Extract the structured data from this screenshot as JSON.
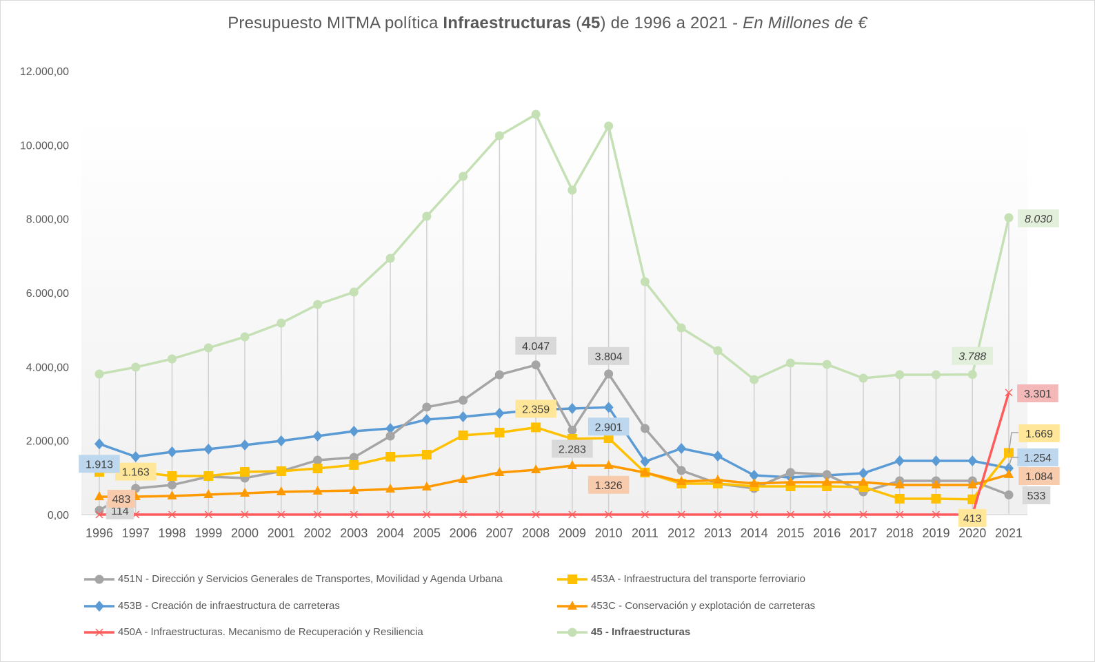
{
  "chart_data": {
    "type": "line",
    "title": {
      "part1": "Presupuesto  MITMA política ",
      "bold": "Infraestructuras",
      "part2": " (",
      "bold2": "45",
      "part3": ") de 1996 a 2021 - ",
      "italic": "En Millones de €"
    },
    "xlabel": "",
    "ylabel": "",
    "ylim": [
      0,
      12000
    ],
    "yticks": [
      0,
      2000,
      4000,
      6000,
      8000,
      10000,
      12000
    ],
    "ytick_labels": [
      "0,00",
      "2.000,00",
      "4.000,00",
      "6.000,00",
      "8.000,00",
      "10.000,00",
      "12.000,00"
    ],
    "grid": "vertical drop lines",
    "legend_position": "bottom",
    "categories": [
      "1996",
      "1997",
      "1998",
      "1999",
      "2000",
      "2001",
      "2002",
      "2003",
      "2004",
      "2005",
      "2006",
      "2007",
      "2008",
      "2009",
      "2010",
      "2011",
      "2012",
      "2013",
      "2014",
      "2015",
      "2016",
      "2017",
      "2018",
      "2019",
      "2020",
      "2021"
    ],
    "series": [
      {
        "name": "451N - Dirección y Servicios Generales de Transportes, Movilidad y Agenda Urbana",
        "color": "#a5a5a5",
        "marker": "circle",
        "values": [
          114,
          708,
          801,
          1025,
          988,
          1174,
          1472,
          1546,
          2124,
          2907,
          3093,
          3783,
          4047,
          2283,
          3804,
          2329,
          1193,
          838,
          708,
          1137,
          1081,
          615,
          913,
          913,
          913,
          533
        ],
        "labels": [
          {
            "index": 0,
            "text": "114",
            "bg": "#d9d9d9"
          },
          {
            "index": 12,
            "text": "4.047",
            "bg": "#d9d9d9"
          },
          {
            "index": 13,
            "text": "2.283",
            "bg": "#d9d9d9"
          },
          {
            "index": 14,
            "text": "3.804",
            "bg": "#d9d9d9"
          },
          {
            "index": 25,
            "text": "533",
            "bg": "#d9d9d9"
          }
        ]
      },
      {
        "name": "453A - Infraestructura del transporte ferroviario",
        "color": "#ffc000",
        "marker": "square",
        "values": [
          1155,
          1163,
          1043,
          1043,
          1155,
          1174,
          1248,
          1342,
          1565,
          1621,
          2143,
          2217,
          2359,
          2050,
          2068,
          1137,
          838,
          838,
          764,
          764,
          764,
          745,
          429,
          429,
          413,
          1669
        ],
        "labels": [
          {
            "index": 1,
            "text": "1.163",
            "bg": "#ffe699"
          },
          {
            "index": 12,
            "text": "2.359",
            "bg": "#ffe699"
          },
          {
            "index": 24,
            "text": "413",
            "bg": "#ffe699"
          },
          {
            "index": 25,
            "text": "1.669",
            "bg": "#ffe699"
          }
        ]
      },
      {
        "name": "453B - Creación de infraestructura de carreteras",
        "color": "#5b9bd5",
        "marker": "diamond",
        "values": [
          1913,
          1565,
          1696,
          1770,
          1882,
          1994,
          2124,
          2255,
          2329,
          2571,
          2646,
          2739,
          2832,
          2869,
          2901,
          1435,
          1789,
          1584,
          1062,
          1006,
          1062,
          1118,
          1453,
          1453,
          1453,
          1254
        ],
        "labels": [
          {
            "index": 0,
            "text": "1.913",
            "bg": "#bdd7ee"
          },
          {
            "index": 14,
            "text": "2.901",
            "bg": "#bdd7ee"
          },
          {
            "index": 25,
            "text": "1.254",
            "bg": "#bdd7ee"
          }
        ]
      },
      {
        "name": "453C - Conservación y explotación de carreteras",
        "color": "#ff9900",
        "marker": "triangle",
        "values": [
          483,
          484,
          503,
          540,
          578,
          615,
          634,
          652,
          689,
          745,
          950,
          1137,
          1211,
          1323,
          1326,
          1137,
          894,
          932,
          838,
          876,
          876,
          876,
          801,
          801,
          801,
          1084
        ],
        "labels": [
          {
            "index": 0,
            "text": "483",
            "bg": "#f8cbad"
          },
          {
            "index": 14,
            "text": "1.326",
            "bg": "#f8cbad"
          },
          {
            "index": 25,
            "text": "1.084",
            "bg": "#f8cbad"
          }
        ]
      },
      {
        "name": "450A - Infraestructuras. Mecanismo de Recuperación y Resiliencia",
        "color": "#ff5b5b",
        "marker": "x",
        "values": [
          0,
          0,
          0,
          0,
          0,
          0,
          0,
          0,
          0,
          0,
          0,
          0,
          0,
          0,
          0,
          0,
          0,
          0,
          0,
          0,
          0,
          0,
          0,
          0,
          0,
          3301
        ],
        "labels": [
          {
            "index": 25,
            "text": "3.301",
            "bg": "#f4b8b8"
          }
        ]
      },
      {
        "name": "45 - Infraestructuras",
        "color": "#c5e0b4",
        "marker": "circle",
        "bold": true,
        "values": [
          3801,
          3987,
          4211,
          4509,
          4807,
          5180,
          5683,
          6018,
          6931,
          8068,
          9149,
          10248,
          10825,
          8776,
          10509,
          6298,
          5049,
          4434,
          3652,
          4099,
          4062,
          3689,
          3782,
          3782,
          3788,
          8030
        ],
        "labels": [
          {
            "index": 24,
            "text": "3.788",
            "bg": "#e2efda",
            "italic": true
          },
          {
            "index": 25,
            "text": "8.030",
            "bg": "#e2efda",
            "italic": true
          }
        ]
      }
    ]
  }
}
